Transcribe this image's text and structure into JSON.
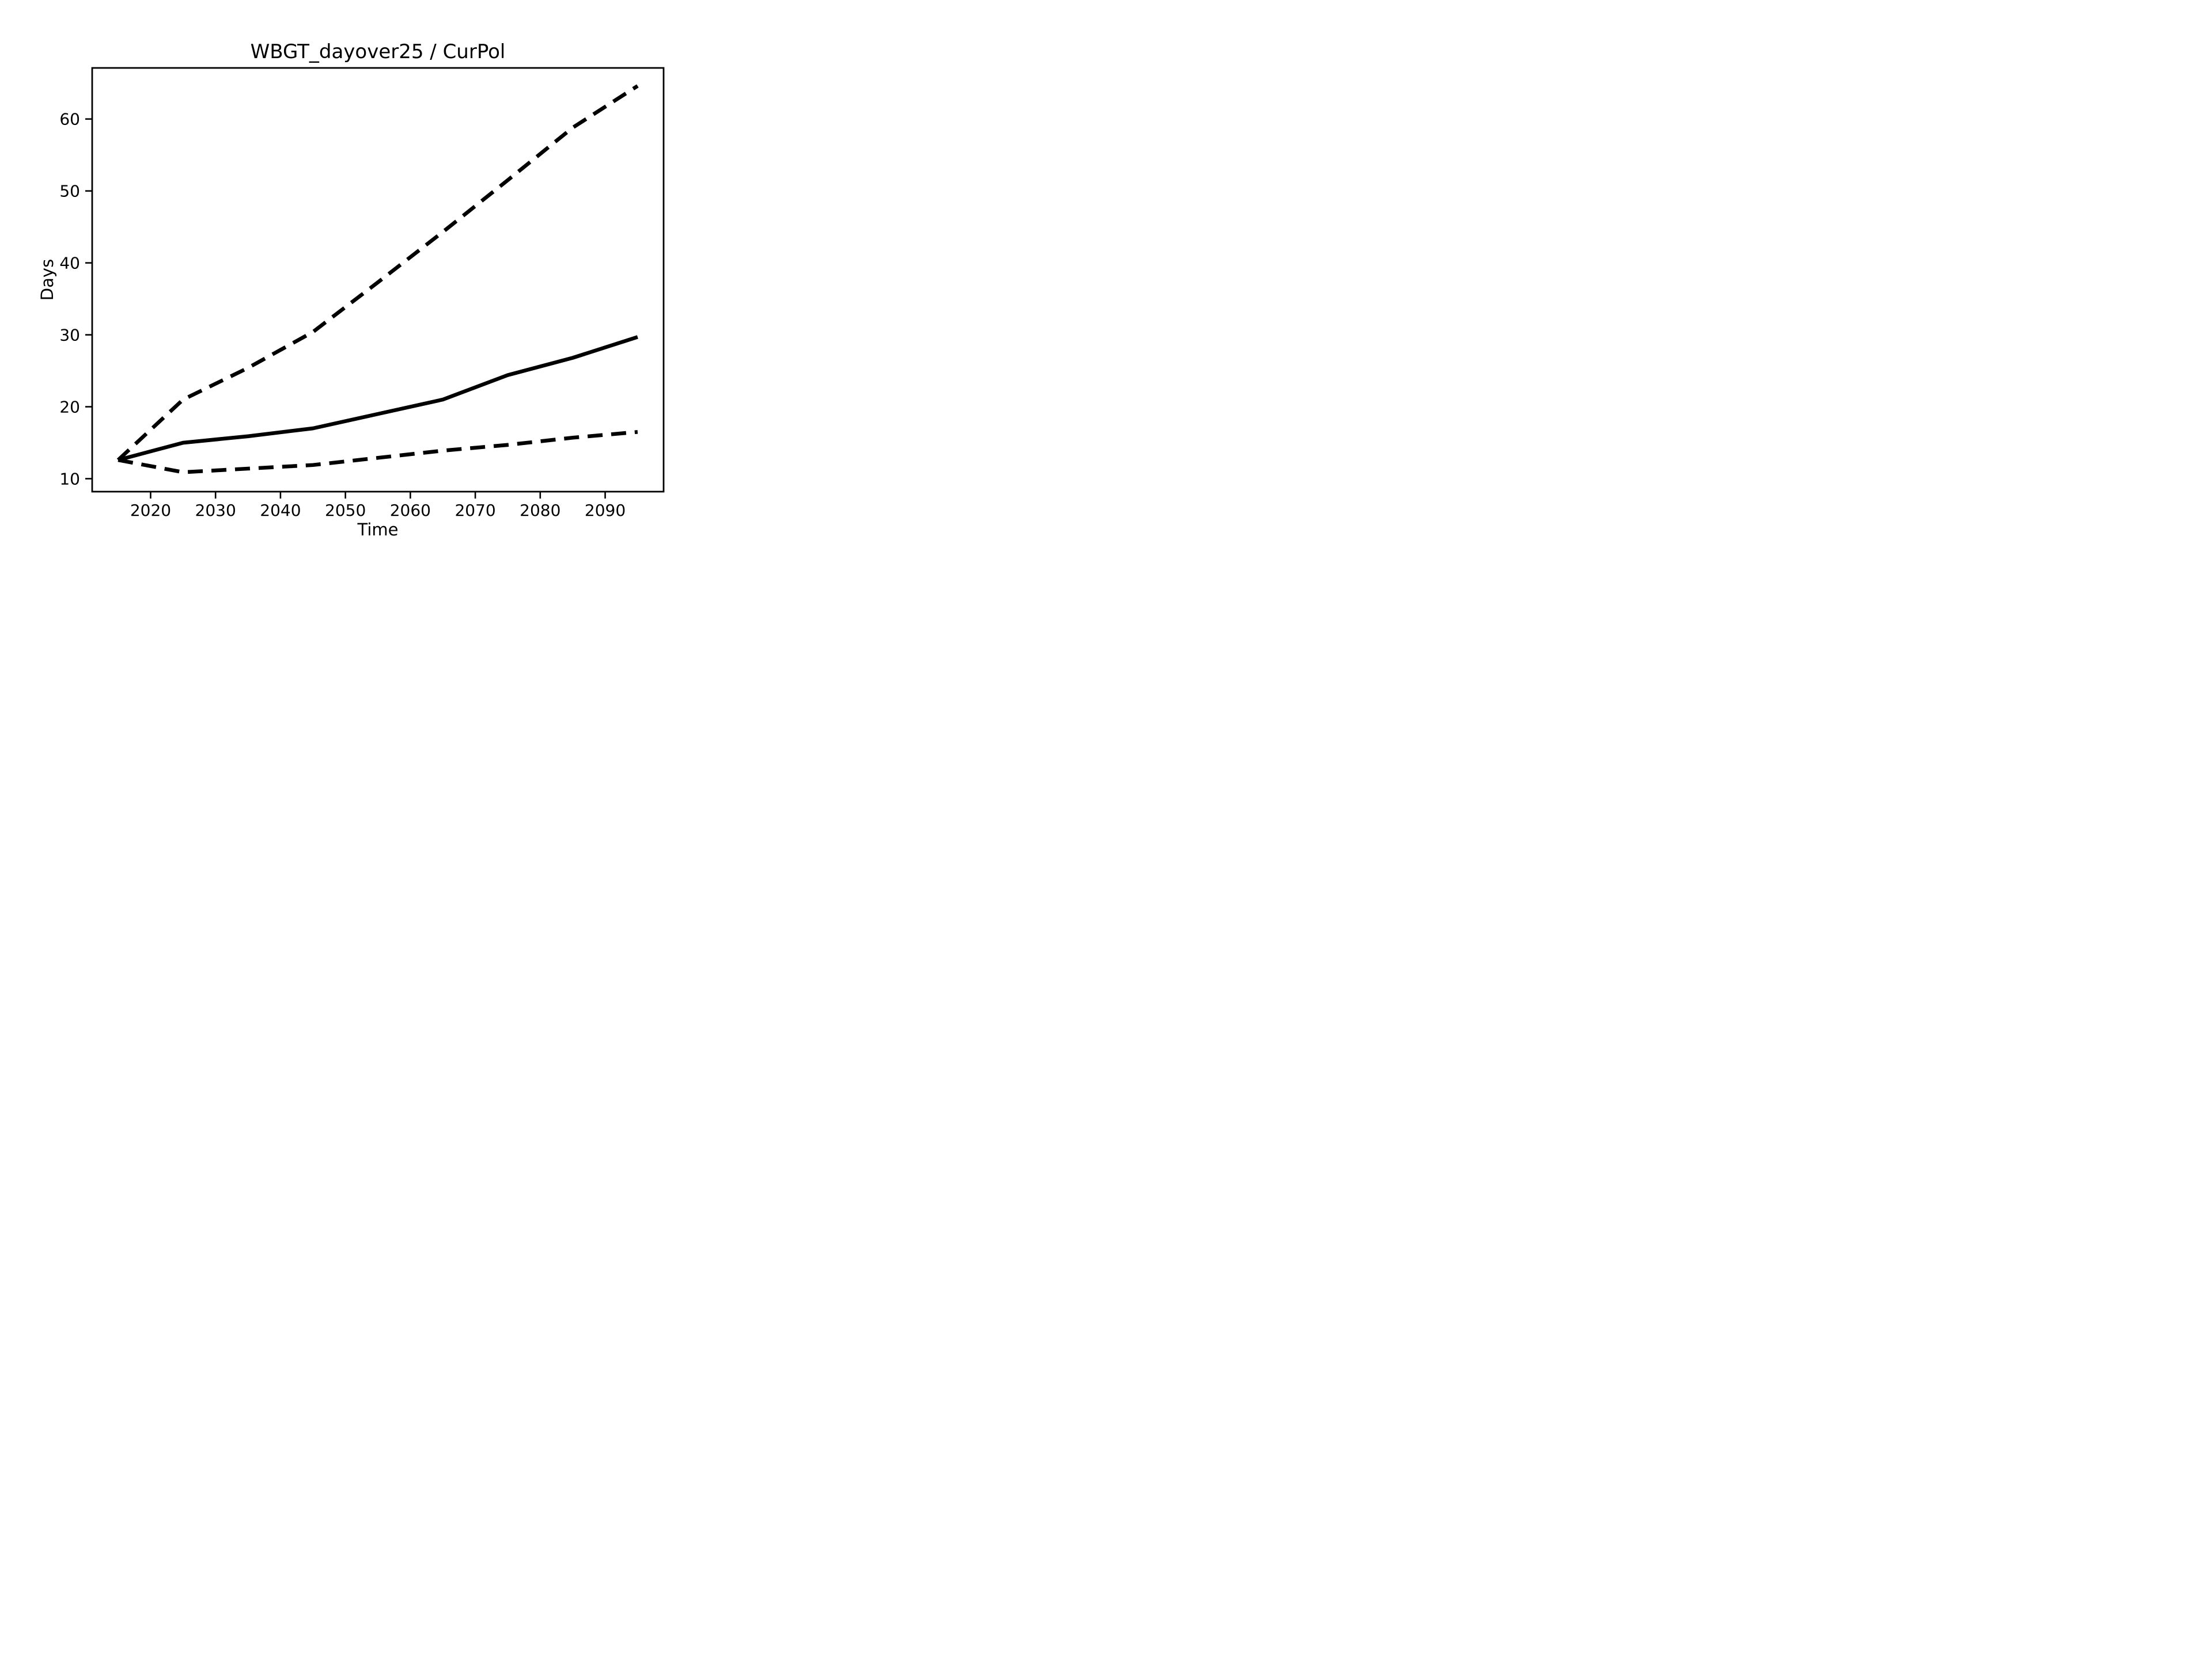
{
  "chart_data": {
    "type": "line",
    "title": "WBGT_dayover25 / CurPol",
    "xlabel": "Time",
    "ylabel": "Days",
    "x": [
      2015,
      2025,
      2035,
      2045,
      2055,
      2065,
      2075,
      2085,
      2095
    ],
    "series": [
      {
        "name": "upper-bound-dashed",
        "style": "dashed",
        "color": "#000000",
        "values": [
          12.6,
          21.0,
          25.4,
          30.4,
          37.3,
          44.3,
          51.5,
          58.8,
          64.6
        ]
      },
      {
        "name": "central-solid",
        "style": "solid",
        "color": "#000000",
        "values": [
          12.6,
          15.0,
          15.9,
          17.0,
          19.0,
          21.0,
          24.4,
          26.8,
          29.7
        ]
      },
      {
        "name": "lower-bound-dashed",
        "style": "dashed",
        "color": "#000000",
        "values": [
          12.6,
          10.9,
          11.4,
          11.9,
          12.9,
          13.9,
          14.7,
          15.7,
          16.5
        ]
      }
    ],
    "xlim": [
      2011,
      2099
    ],
    "ylim": [
      8.2,
      67.1
    ],
    "x_ticks": [
      2020,
      2030,
      2040,
      2050,
      2060,
      2070,
      2080,
      2090
    ],
    "y_ticks": [
      10,
      20,
      30,
      40,
      50,
      60
    ],
    "grid": false,
    "legend": "none",
    "background": "#ffffff",
    "axis_color": "#000000"
  }
}
